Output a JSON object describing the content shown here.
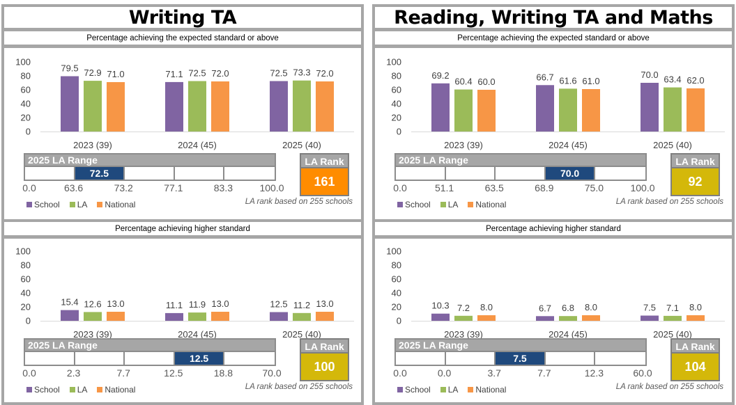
{
  "colors": {
    "school": "#8064a2",
    "la": "#9bbb59",
    "national": "#f79646",
    "range_school": "#1f497d",
    "rank_orange": "#ff8c00",
    "rank_yellow": "#d4b80a",
    "border": "#a6a6a6"
  },
  "legend": {
    "school": "School",
    "la": "LA",
    "national": "National"
  },
  "panels": [
    {
      "title": "Writing TA",
      "sections": [
        {
          "subtitle": "Percentage achieving the expected standard or above",
          "range_label": "2025 LA Range",
          "range_ticks": [
            "0.0",
            "63.6",
            "73.2",
            "77.1",
            "83.3",
            "100.0"
          ],
          "range_school_value": "72.5",
          "range_school_band": 1,
          "rank_label": "LA Rank",
          "rank_value": "161",
          "rank_color": "orange",
          "rank_note": "LA rank based on 255 schools"
        },
        {
          "subtitle": "Percentage achieving higher standard",
          "range_label": "2025 LA Range",
          "range_ticks": [
            "0.0",
            "2.3",
            "7.7",
            "12.5",
            "18.8",
            "70.0"
          ],
          "range_school_value": "12.5",
          "range_school_band": 3,
          "rank_label": "LA Rank",
          "rank_value": "100",
          "rank_color": "yellow",
          "rank_note": "LA rank based on 255 schools"
        }
      ]
    },
    {
      "title": "Reading, Writing TA and Maths",
      "sections": [
        {
          "subtitle": "Percentage achieving the expected standard or above",
          "range_label": "2025 LA Range",
          "range_ticks": [
            "0.0",
            "51.1",
            "63.5",
            "68.9",
            "75.0",
            "100.0"
          ],
          "range_school_value": "70.0",
          "range_school_band": 3,
          "rank_label": "LA Rank",
          "rank_value": "92",
          "rank_color": "yellow",
          "rank_note": "LA rank based on 255 schools"
        },
        {
          "subtitle": "Percentage achieving higher standard",
          "range_label": "2025 LA Range",
          "range_ticks": [
            "0.0",
            "0.0",
            "3.7",
            "7.7",
            "12.3",
            "60.0"
          ],
          "range_school_value": "7.5",
          "range_school_band": 2,
          "rank_label": "LA Rank",
          "rank_value": "104",
          "rank_color": "yellow",
          "rank_note": "LA rank based on 255 schools"
        }
      ]
    }
  ],
  "chart_data": [
    {
      "type": "bar",
      "title": "Writing TA - Percentage achieving the expected standard or above",
      "categories": [
        "2023 (39)",
        "2024 (45)",
        "2025 (40)"
      ],
      "series": [
        {
          "name": "School",
          "values": [
            79.5,
            71.1,
            72.5
          ]
        },
        {
          "name": "LA",
          "values": [
            72.9,
            72.5,
            73.3
          ]
        },
        {
          "name": "National",
          "values": [
            71.0,
            72.0,
            72.0
          ]
        }
      ],
      "yticks": [
        "0",
        "20",
        "40",
        "60",
        "80",
        "100"
      ],
      "ylim": [
        0,
        100
      ],
      "legend": "bottom-left"
    },
    {
      "type": "bar",
      "title": "Writing TA - Percentage achieving higher standard",
      "categories": [
        "2023 (39)",
        "2024 (45)",
        "2025 (40)"
      ],
      "series": [
        {
          "name": "School",
          "values": [
            15.4,
            11.1,
            12.5
          ]
        },
        {
          "name": "LA",
          "values": [
            12.6,
            11.9,
            11.2
          ]
        },
        {
          "name": "National",
          "values": [
            13.0,
            13.0,
            13.0
          ]
        }
      ],
      "yticks": [
        "0",
        "20",
        "40",
        "60",
        "80",
        "100"
      ],
      "ylim": [
        0,
        100
      ],
      "legend": "bottom-left"
    },
    {
      "type": "bar",
      "title": "Reading, Writing TA and Maths - Percentage achieving the expected standard or above",
      "categories": [
        "2023 (39)",
        "2024 (45)",
        "2025 (40)"
      ],
      "series": [
        {
          "name": "School",
          "values": [
            69.2,
            66.7,
            70.0
          ]
        },
        {
          "name": "LA",
          "values": [
            60.4,
            61.6,
            63.4
          ]
        },
        {
          "name": "National",
          "values": [
            60.0,
            61.0,
            62.0
          ]
        }
      ],
      "yticks": [
        "0",
        "20",
        "40",
        "60",
        "80",
        "100"
      ],
      "ylim": [
        0,
        100
      ],
      "legend": "bottom-left"
    },
    {
      "type": "bar",
      "title": "Reading, Writing TA and Maths - Percentage achieving higher standard",
      "categories": [
        "2023 (39)",
        "2024 (45)",
        "2025 (40)"
      ],
      "series": [
        {
          "name": "School",
          "values": [
            10.3,
            6.7,
            7.5
          ]
        },
        {
          "name": "LA",
          "values": [
            7.2,
            6.8,
            7.1
          ]
        },
        {
          "name": "National",
          "values": [
            8.0,
            8.0,
            8.0
          ]
        }
      ],
      "yticks": [
        "0",
        "20",
        "40",
        "60",
        "80",
        "100"
      ],
      "ylim": [
        0,
        100
      ],
      "legend": "bottom-left"
    }
  ]
}
